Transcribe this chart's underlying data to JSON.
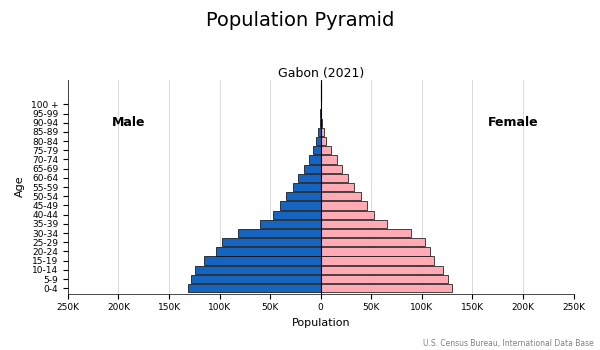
{
  "title": "Population Pyramid",
  "subtitle": "Gabon (2021)",
  "xlabel": "Population",
  "ylabel": "Age",
  "source": "U.S. Census Bureau, International Data Base",
  "age_groups": [
    "0-4",
    "5-9",
    "10-14",
    "15-19",
    "20-24",
    "25-29",
    "30-34",
    "35-39",
    "40-44",
    "45-49",
    "50-54",
    "55-59",
    "60-64",
    "65-69",
    "70-74",
    "75-79",
    "80-84",
    "85-89",
    "90-94",
    "95-99",
    "100 +"
  ],
  "male": [
    131000,
    128000,
    124000,
    115000,
    104000,
    98000,
    82000,
    60000,
    47000,
    40000,
    34000,
    27000,
    22000,
    17000,
    12000,
    8000,
    4500,
    2200,
    800,
    250,
    60
  ],
  "female": [
    130000,
    126000,
    121000,
    112000,
    108000,
    103000,
    89000,
    66000,
    53000,
    46000,
    40000,
    33000,
    27000,
    21000,
    16000,
    10000,
    5500,
    2800,
    1100,
    350,
    100
  ],
  "male_color": "#1565C0",
  "female_color": "#FFAAB5",
  "male_edge": "#000000",
  "female_edge": "#000000",
  "xlim": 250000,
  "bg_color": "#FFFFFF",
  "grid_color": "#CCCCCC",
  "bar_height": 0.9,
  "male_label": "Male",
  "female_label": "Female",
  "title_fontsize": 14,
  "subtitle_fontsize": 9,
  "tick_fontsize": 6.5,
  "label_fontsize": 8
}
